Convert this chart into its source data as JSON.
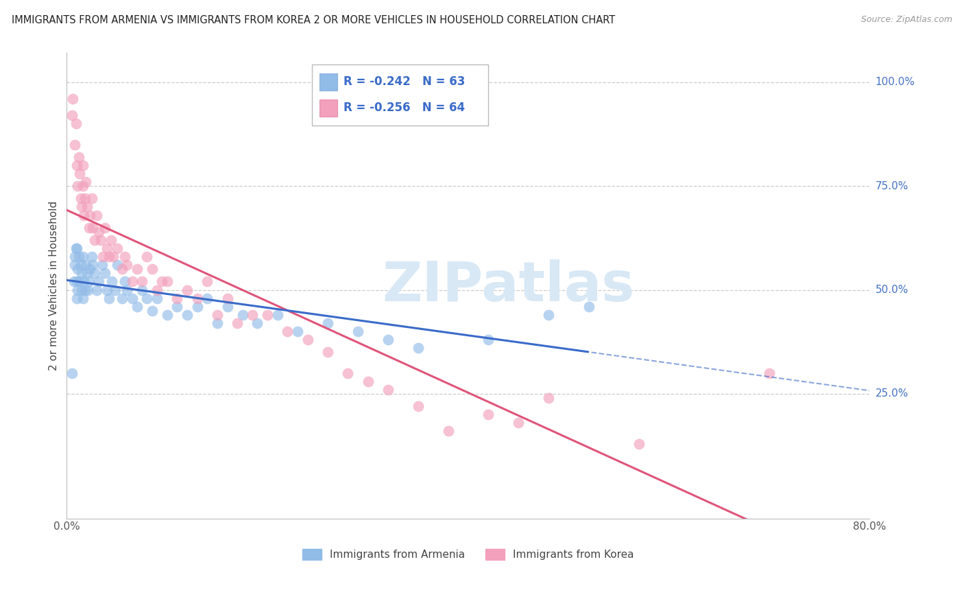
{
  "title": "IMMIGRANTS FROM ARMENIA VS IMMIGRANTS FROM KOREA 2 OR MORE VEHICLES IN HOUSEHOLD CORRELATION CHART",
  "source": "Source: ZipAtlas.com",
  "ylabel": "2 or more Vehicles in Household",
  "armenia_color": "#92bce8",
  "korea_color": "#f2a0bb",
  "armenia_line_color": "#3a6bc9",
  "korea_line_color": "#e0547a",
  "armenia_dashed_color": "#7aaad8",
  "watermark_color": "#d8e8f5",
  "legend_text_color": "#3a6bc9",
  "right_axis_color": "#4472c4",
  "legend_label_armenia": "Immigrants from Armenia",
  "legend_label_korea": "Immigrants from Korea",
  "xlim": [
    0.0,
    0.8
  ],
  "ylim": [
    -0.05,
    1.07
  ],
  "grid_vals": [
    0.25,
    0.5,
    0.75,
    1.0
  ],
  "armenia_scatter_x": [
    0.005,
    0.007,
    0.008,
    0.008,
    0.009,
    0.01,
    0.01,
    0.01,
    0.011,
    0.011,
    0.012,
    0.013,
    0.014,
    0.015,
    0.015,
    0.016,
    0.016,
    0.017,
    0.018,
    0.019,
    0.02,
    0.021,
    0.022,
    0.023,
    0.025,
    0.026,
    0.028,
    0.03,
    0.032,
    0.035,
    0.038,
    0.04,
    0.042,
    0.045,
    0.048,
    0.05,
    0.055,
    0.058,
    0.06,
    0.065,
    0.07,
    0.075,
    0.08,
    0.085,
    0.09,
    0.1,
    0.11,
    0.12,
    0.13,
    0.14,
    0.15,
    0.16,
    0.175,
    0.19,
    0.21,
    0.23,
    0.26,
    0.29,
    0.32,
    0.35,
    0.42,
    0.48,
    0.52
  ],
  "armenia_scatter_y": [
    0.3,
    0.52,
    0.56,
    0.58,
    0.6,
    0.48,
    0.52,
    0.6,
    0.5,
    0.55,
    0.58,
    0.52,
    0.56,
    0.5,
    0.54,
    0.48,
    0.58,
    0.52,
    0.5,
    0.56,
    0.54,
    0.5,
    0.52,
    0.55,
    0.58,
    0.56,
    0.54,
    0.5,
    0.52,
    0.56,
    0.54,
    0.5,
    0.48,
    0.52,
    0.5,
    0.56,
    0.48,
    0.52,
    0.5,
    0.48,
    0.46,
    0.5,
    0.48,
    0.45,
    0.48,
    0.44,
    0.46,
    0.44,
    0.46,
    0.48,
    0.42,
    0.46,
    0.44,
    0.42,
    0.44,
    0.4,
    0.42,
    0.4,
    0.38,
    0.36,
    0.38,
    0.44,
    0.46
  ],
  "korea_scatter_x": [
    0.005,
    0.006,
    0.008,
    0.009,
    0.01,
    0.011,
    0.012,
    0.013,
    0.014,
    0.015,
    0.016,
    0.016,
    0.017,
    0.018,
    0.019,
    0.02,
    0.022,
    0.023,
    0.025,
    0.026,
    0.028,
    0.03,
    0.032,
    0.034,
    0.036,
    0.038,
    0.04,
    0.042,
    0.044,
    0.046,
    0.05,
    0.055,
    0.058,
    0.06,
    0.065,
    0.07,
    0.075,
    0.08,
    0.085,
    0.09,
    0.095,
    0.1,
    0.11,
    0.12,
    0.13,
    0.14,
    0.15,
    0.16,
    0.17,
    0.185,
    0.2,
    0.22,
    0.24,
    0.26,
    0.28,
    0.3,
    0.32,
    0.35,
    0.38,
    0.42,
    0.45,
    0.48,
    0.57,
    0.7
  ],
  "korea_scatter_y": [
    0.92,
    0.96,
    0.85,
    0.9,
    0.8,
    0.75,
    0.82,
    0.78,
    0.72,
    0.7,
    0.75,
    0.8,
    0.68,
    0.72,
    0.76,
    0.7,
    0.65,
    0.68,
    0.72,
    0.65,
    0.62,
    0.68,
    0.64,
    0.62,
    0.58,
    0.65,
    0.6,
    0.58,
    0.62,
    0.58,
    0.6,
    0.55,
    0.58,
    0.56,
    0.52,
    0.55,
    0.52,
    0.58,
    0.55,
    0.5,
    0.52,
    0.52,
    0.48,
    0.5,
    0.48,
    0.52,
    0.44,
    0.48,
    0.42,
    0.44,
    0.44,
    0.4,
    0.38,
    0.35,
    0.3,
    0.28,
    0.26,
    0.22,
    0.16,
    0.2,
    0.18,
    0.24,
    0.13,
    0.3
  ]
}
